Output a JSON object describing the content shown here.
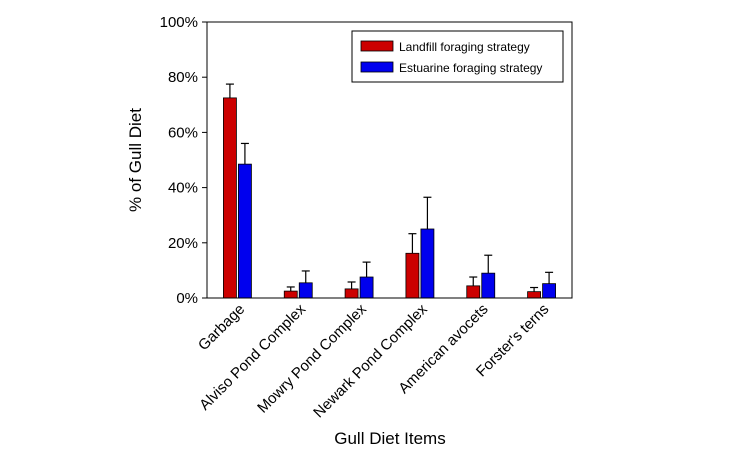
{
  "chart_data": {
    "type": "bar",
    "categories": [
      "Garbage",
      "Alviso Pond Complex",
      "Mowry Pond Complex",
      "Newark Pond Complex",
      "American avocets",
      "Forster's terns"
    ],
    "series": [
      {
        "name": "Landfill foraging strategy",
        "color": "#cc0000",
        "values": [
          72.5,
          2.5,
          3.3,
          16.2,
          4.4,
          2.3
        ],
        "error_upper": [
          77.5,
          4.0,
          5.8,
          23.3,
          7.6,
          3.8
        ]
      },
      {
        "name": "Estuarine foraging strategy",
        "color": "#0000ee",
        "values": [
          48.5,
          5.5,
          7.6,
          25.0,
          9.0,
          5.2
        ],
        "error_upper": [
          56.0,
          9.8,
          13.0,
          36.5,
          15.5,
          9.3
        ]
      }
    ],
    "xlabel": "Gull Diet Items",
    "ylabel": "% of Gull Diet",
    "ylim": [
      0,
      100
    ],
    "yticks": [
      "0%",
      "20%",
      "40%",
      "60%",
      "80%",
      "100%"
    ],
    "ytick_values": [
      0,
      20,
      40,
      60,
      80,
      100
    ],
    "legend_position": "top-right",
    "grid": false
  }
}
